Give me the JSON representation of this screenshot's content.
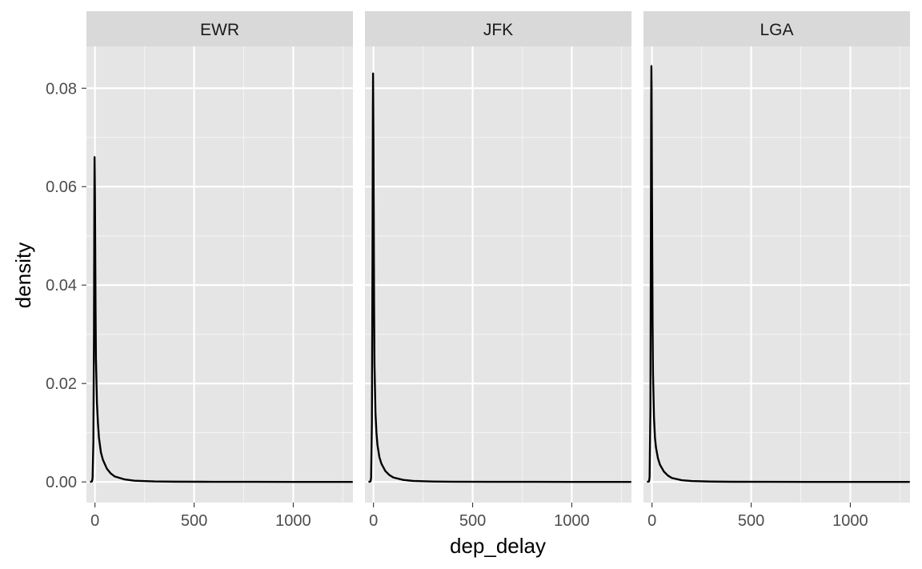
{
  "chart_data": {
    "type": "line",
    "subtype": "density",
    "facet_by": "origin",
    "xlabel": "dep_delay",
    "ylabel": "density",
    "xlim": [
      -43,
      1301
    ],
    "ylim": [
      -0.0042,
      0.0885
    ],
    "x_ticks": [
      0,
      500,
      1000
    ],
    "x_tick_labels": [
      "0",
      "500",
      "1000"
    ],
    "x_minor_breaks": [
      250,
      750,
      1250
    ],
    "y_ticks": [
      0,
      0.02,
      0.04,
      0.06,
      0.08
    ],
    "y_tick_labels": [
      "0.00",
      "0.02",
      "0.04",
      "0.06",
      "0.08"
    ],
    "y_minor_breaks": [
      0.01,
      0.03,
      0.05,
      0.07
    ],
    "grid": true,
    "colors": {
      "panel_bg": "#e5e5e5",
      "grid": "#ffffff",
      "strip_bg": "#d9d9d9",
      "line": "#000000",
      "tick_text": "#4d4d4d"
    },
    "panels": [
      {
        "label": "EWR",
        "x": [
          -25,
          -15,
          -12,
          -8,
          -5,
          -3,
          -2,
          0,
          3,
          5,
          10,
          15,
          20,
          30,
          40,
          60,
          80,
          100,
          150,
          200,
          300,
          400,
          600,
          800,
          1000,
          1300
        ],
        "y": [
          0,
          0.0001,
          0.0008,
          0.008,
          0.03,
          0.058,
          0.066,
          0.058,
          0.035,
          0.025,
          0.016,
          0.012,
          0.009,
          0.006,
          0.0045,
          0.0027,
          0.0017,
          0.0011,
          0.0005,
          0.00025,
          0.0001,
          5e-05,
          2e-05,
          1e-05,
          5e-06,
          0
        ]
      },
      {
        "label": "JFK",
        "x": [
          -25,
          -15,
          -12,
          -8,
          -5,
          -3,
          -2,
          0,
          3,
          5,
          10,
          15,
          20,
          30,
          40,
          60,
          80,
          100,
          150,
          200,
          300,
          400,
          600,
          800,
          1000,
          1300
        ],
        "y": [
          0,
          0.0001,
          0.0008,
          0.012,
          0.045,
          0.076,
          0.083,
          0.068,
          0.036,
          0.024,
          0.014,
          0.01,
          0.0075,
          0.005,
          0.0037,
          0.0022,
          0.0014,
          0.0009,
          0.0004,
          0.0002,
          8e-05,
          4e-05,
          2e-05,
          1e-05,
          5e-06,
          0
        ]
      },
      {
        "label": "LGA",
        "x": [
          -25,
          -15,
          -12,
          -8,
          -6,
          -4,
          -3,
          -2,
          0,
          3,
          5,
          10,
          15,
          20,
          30,
          40,
          60,
          80,
          100,
          150,
          200,
          300,
          400,
          600,
          800,
          1000,
          1300
        ],
        "y": [
          0,
          0.0001,
          0.001,
          0.015,
          0.045,
          0.078,
          0.0845,
          0.08,
          0.058,
          0.032,
          0.022,
          0.013,
          0.009,
          0.007,
          0.0048,
          0.0035,
          0.0021,
          0.0013,
          0.0008,
          0.00035,
          0.00018,
          7e-05,
          3e-05,
          1e-05,
          5e-06,
          2e-06,
          0
        ]
      }
    ]
  }
}
